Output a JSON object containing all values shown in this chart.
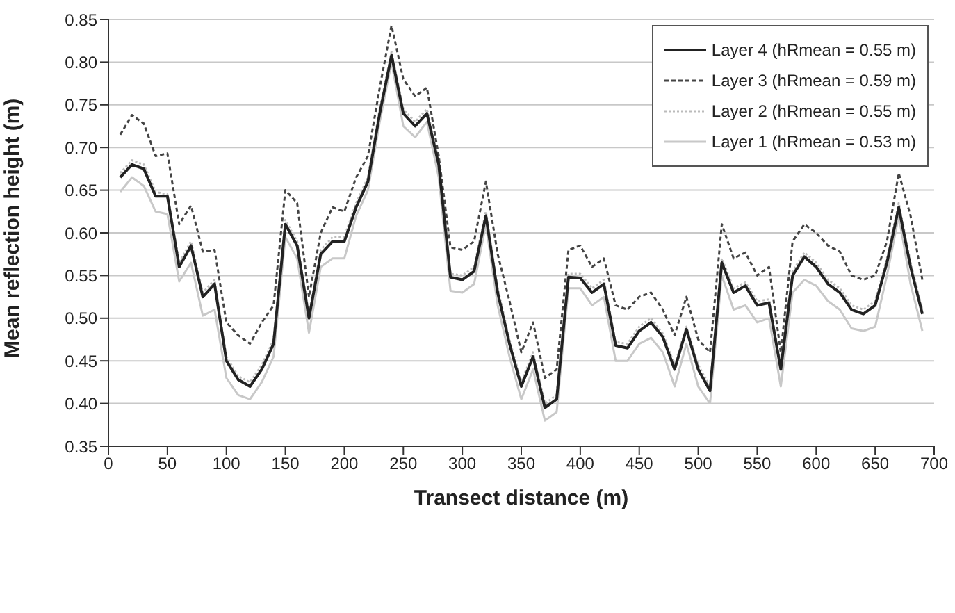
{
  "chart_data": {
    "type": "line",
    "xlabel": "Transect distance (m)",
    "ylabel": "Mean reflection height (m)",
    "x": [
      10,
      20,
      30,
      40,
      50,
      60,
      70,
      80,
      90,
      100,
      110,
      120,
      130,
      140,
      150,
      160,
      170,
      180,
      190,
      200,
      210,
      220,
      230,
      240,
      250,
      260,
      270,
      280,
      290,
      300,
      310,
      320,
      330,
      340,
      350,
      360,
      370,
      380,
      390,
      400,
      410,
      420,
      430,
      440,
      450,
      460,
      470,
      480,
      490,
      500,
      510,
      520,
      530,
      540,
      550,
      560,
      570,
      580,
      590,
      600,
      610,
      620,
      630,
      640,
      650,
      660,
      670,
      680,
      690
    ],
    "series": [
      {
        "name": "Layer 4 (hRmean = 0.55 m)",
        "color": "#222222",
        "line_style": "solid",
        "values": [
          0.665,
          0.68,
          0.675,
          0.643,
          0.643,
          0.56,
          0.585,
          0.525,
          0.54,
          0.45,
          0.428,
          0.42,
          0.44,
          0.47,
          0.61,
          0.585,
          0.5,
          0.575,
          0.59,
          0.59,
          0.63,
          0.66,
          0.74,
          0.808,
          0.74,
          0.725,
          0.74,
          0.68,
          0.548,
          0.545,
          0.555,
          0.62,
          0.53,
          0.47,
          0.42,
          0.455,
          0.395,
          0.405,
          0.548,
          0.547,
          0.53,
          0.54,
          0.468,
          0.465,
          0.485,
          0.495,
          0.478,
          0.44,
          0.487,
          0.44,
          0.415,
          0.565,
          0.53,
          0.538,
          0.515,
          0.518,
          0.44,
          0.55,
          0.572,
          0.56,
          0.54,
          0.53,
          0.51,
          0.505,
          0.515,
          0.565,
          0.63,
          0.56,
          0.505
        ]
      },
      {
        "name": "Layer 3 (hRmean = 0.59 m)",
        "color": "#444444",
        "line_style": "dashed",
        "values": [
          0.715,
          0.738,
          0.728,
          0.69,
          0.693,
          0.61,
          0.632,
          0.578,
          0.58,
          0.495,
          0.48,
          0.47,
          0.495,
          0.515,
          0.65,
          0.635,
          0.525,
          0.6,
          0.63,
          0.625,
          0.665,
          0.69,
          0.77,
          0.843,
          0.78,
          0.76,
          0.77,
          0.69,
          0.583,
          0.58,
          0.59,
          0.66,
          0.575,
          0.52,
          0.46,
          0.495,
          0.43,
          0.44,
          0.58,
          0.585,
          0.56,
          0.57,
          0.515,
          0.51,
          0.525,
          0.53,
          0.51,
          0.48,
          0.525,
          0.475,
          0.46,
          0.61,
          0.57,
          0.577,
          0.55,
          0.56,
          0.46,
          0.59,
          0.61,
          0.6,
          0.585,
          0.578,
          0.55,
          0.545,
          0.55,
          0.59,
          0.67,
          0.62,
          0.545
        ]
      },
      {
        "name": "Layer 2 (hRmean = 0.55 m)",
        "color": "#bbbbbb",
        "line_style": "dotted",
        "values": [
          0.67,
          0.685,
          0.68,
          0.648,
          0.645,
          0.565,
          0.59,
          0.53,
          0.545,
          0.455,
          0.432,
          0.425,
          0.445,
          0.475,
          0.615,
          0.59,
          0.505,
          0.58,
          0.595,
          0.595,
          0.635,
          0.665,
          0.745,
          0.812,
          0.745,
          0.73,
          0.745,
          0.685,
          0.552,
          0.55,
          0.56,
          0.625,
          0.535,
          0.475,
          0.425,
          0.46,
          0.4,
          0.41,
          0.552,
          0.552,
          0.535,
          0.545,
          0.472,
          0.47,
          0.49,
          0.5,
          0.482,
          0.445,
          0.49,
          0.445,
          0.42,
          0.57,
          0.535,
          0.542,
          0.52,
          0.522,
          0.445,
          0.555,
          0.577,
          0.565,
          0.545,
          0.535,
          0.515,
          0.51,
          0.52,
          0.57,
          0.635,
          0.565,
          0.51
        ]
      },
      {
        "name": "Layer 1 (hRmean = 0.53 m)",
        "color": "#c8c8c8",
        "line_style": "solid",
        "values": [
          0.648,
          0.665,
          0.655,
          0.625,
          0.622,
          0.543,
          0.565,
          0.503,
          0.51,
          0.43,
          0.41,
          0.405,
          0.425,
          0.455,
          0.595,
          0.57,
          0.483,
          0.56,
          0.57,
          0.57,
          0.62,
          0.65,
          0.73,
          0.8,
          0.725,
          0.712,
          0.73,
          0.665,
          0.532,
          0.53,
          0.54,
          0.61,
          0.515,
          0.455,
          0.405,
          0.44,
          0.38,
          0.39,
          0.535,
          0.535,
          0.515,
          0.525,
          0.45,
          0.45,
          0.47,
          0.477,
          0.46,
          0.42,
          0.47,
          0.42,
          0.4,
          0.55,
          0.51,
          0.515,
          0.495,
          0.5,
          0.42,
          0.53,
          0.545,
          0.538,
          0.52,
          0.51,
          0.488,
          0.485,
          0.49,
          0.55,
          0.62,
          0.54,
          0.485
        ]
      }
    ],
    "xlim": [
      0,
      700
    ],
    "xticks": [
      0,
      50,
      100,
      150,
      200,
      250,
      300,
      350,
      400,
      450,
      500,
      550,
      600,
      650,
      700
    ],
    "ylim": [
      0.35,
      0.85
    ],
    "yticks": [
      {
        "value": 0.35,
        "label": "0.35"
      },
      {
        "value": 0.4,
        "label": "0.40"
      },
      {
        "value": 0.45,
        "label": "0.45"
      },
      {
        "value": 0.5,
        "label": "0.50"
      },
      {
        "value": 0.55,
        "label": "0.55"
      },
      {
        "value": 0.6,
        "label": "0.60"
      },
      {
        "value": 0.65,
        "label": "0.65"
      },
      {
        "value": 0.7,
        "label": "0.70"
      },
      {
        "value": 0.75,
        "label": "0.75"
      },
      {
        "value": 0.8,
        "label": "0.80"
      },
      {
        "value": 0.85,
        "label": "0.85"
      }
    ],
    "grid": "y",
    "legend": "top right",
    "marker": "none"
  }
}
